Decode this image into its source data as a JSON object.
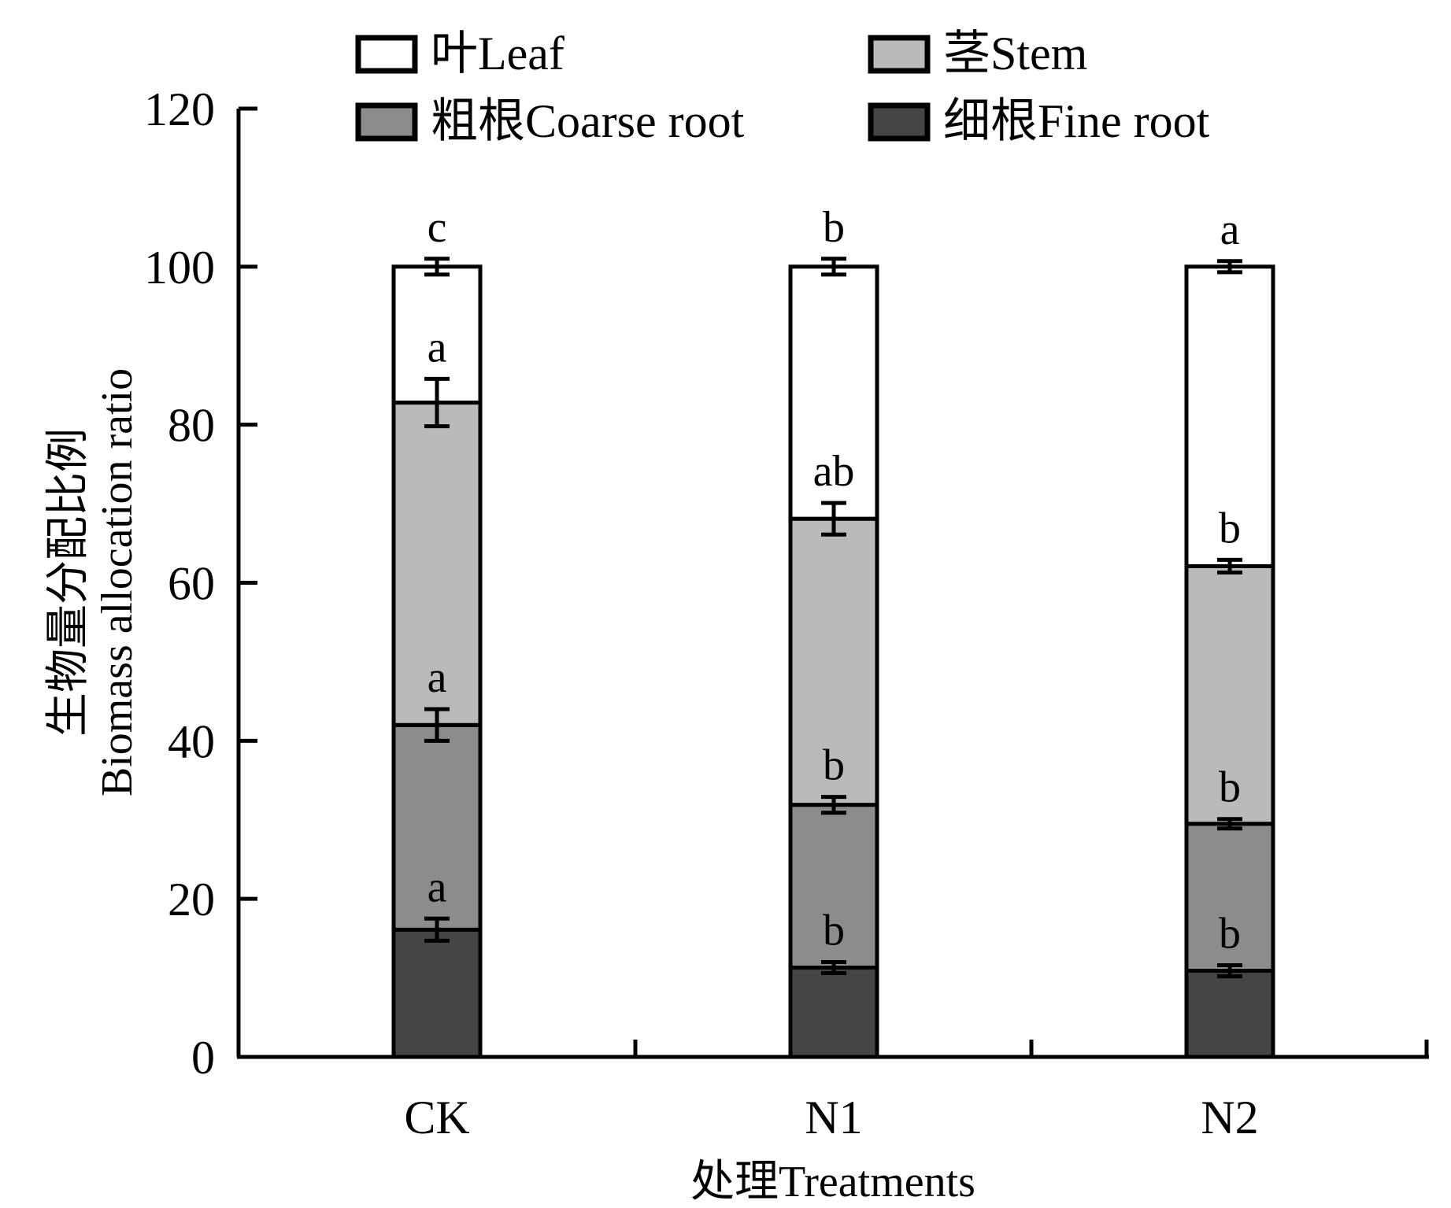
{
  "chart_data": {
    "type": "bar",
    "stacked": true,
    "title": "",
    "xlabel": "处理Treatments",
    "ylabel_line1": "生物量分配比例",
    "ylabel_line2": "Biomass allocation ratio",
    "ylim": [
      0,
      120
    ],
    "yticks": [
      0,
      20,
      40,
      60,
      80,
      100,
      120
    ],
    "grid": false,
    "legend_position": "top",
    "categories": [
      "CK",
      "N1",
      "N2"
    ],
    "series": [
      {
        "name": "细根Fine root",
        "color": "#454545",
        "values": [
          16.1,
          11.3,
          10.9
        ],
        "errors": [
          1.4,
          0.7,
          0.7
        ],
        "letters": [
          "a",
          "b",
          "b"
        ]
      },
      {
        "name": "粗根Coarse root",
        "color": "#8c8c8c",
        "values": [
          25.9,
          20.6,
          18.6
        ],
        "errors": [
          2.0,
          1.0,
          0.6
        ],
        "letters": [
          "a",
          "b",
          "b"
        ]
      },
      {
        "name": "茎Stem",
        "color": "#bababa",
        "values": [
          40.8,
          36.2,
          32.6
        ],
        "errors": [
          3.0,
          2.0,
          0.8
        ],
        "letters": [
          "a",
          "ab",
          "b"
        ]
      },
      {
        "name": "叶Leaf",
        "color": "#ffffff",
        "values": [
          17.2,
          31.9,
          37.9
        ],
        "errors": [
          1.0,
          1.0,
          0.7
        ],
        "letters": [
          "c",
          "b",
          "a"
        ]
      }
    ],
    "legend_order": [
      "叶Leaf",
      "茎Stem",
      "粗根Coarse root",
      "细根Fine root"
    ]
  }
}
